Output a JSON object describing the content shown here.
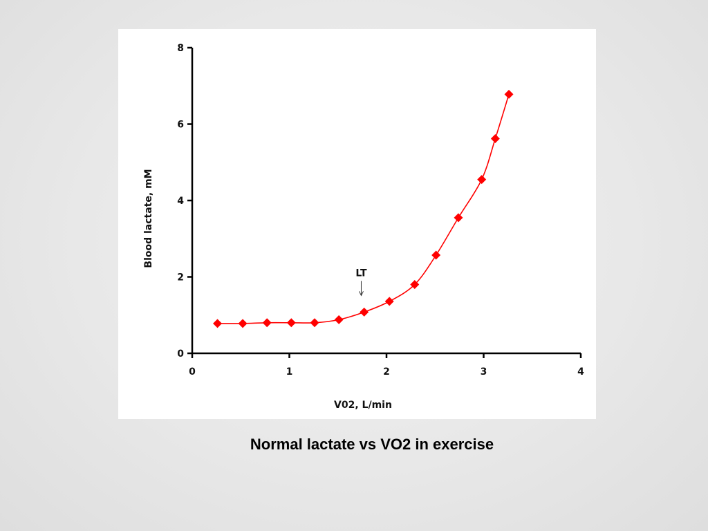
{
  "caption": "Normal lactate vs VO2 in exercise",
  "chart_data": {
    "type": "line",
    "title": "",
    "xlabel": "V02, L/min",
    "ylabel": "Blood lactate, mM",
    "xlim": [
      0,
      4
    ],
    "ylim": [
      0,
      8
    ],
    "x_ticks": [
      "0",
      "1",
      "2",
      "3",
      "4"
    ],
    "y_ticks": [
      "0",
      "2",
      "4",
      "6",
      "8"
    ],
    "grid": false,
    "legend": "none",
    "series": [
      {
        "color": "#ff0000",
        "marker": "diamond",
        "x": [
          0.26,
          0.52,
          0.77,
          1.02,
          1.26,
          1.51,
          1.77,
          2.03,
          2.29,
          2.51,
          2.74,
          2.98,
          3.12,
          3.26
        ],
        "y": [
          0.78,
          0.78,
          0.8,
          0.8,
          0.8,
          0.88,
          1.08,
          1.36,
          1.8,
          2.57,
          3.55,
          4.55,
          5.62,
          6.78
        ]
      }
    ],
    "annotations": [
      {
        "text": "LT",
        "x": 1.74,
        "y": 1.08,
        "arrow": "down"
      }
    ]
  }
}
